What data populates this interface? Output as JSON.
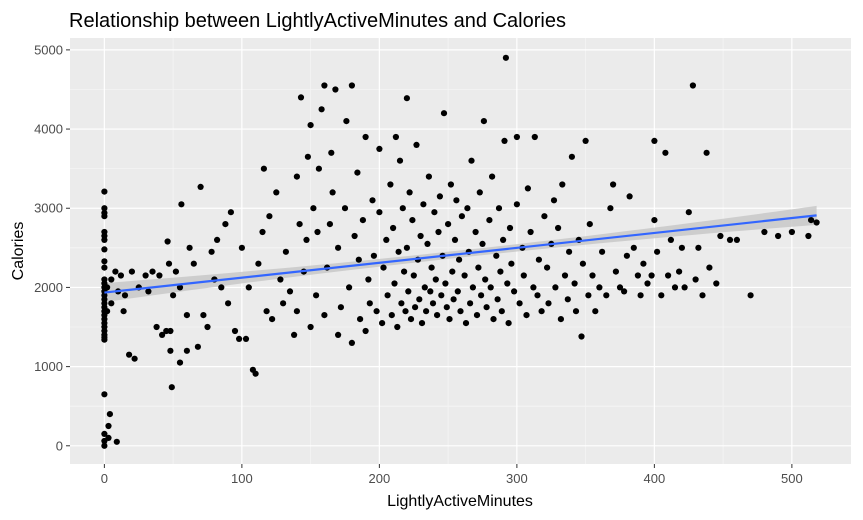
{
  "colors": {
    "panel_bg": "#ebebeb",
    "grid_major": "#ffffff",
    "grid_minor": "#f5f5f5",
    "point": "#000000",
    "trend_line": "#3366ff",
    "confidence_band": "#c8c8c8",
    "tick_label": "#4d4d4d",
    "tick_mark": "#333333"
  },
  "chart_data": {
    "type": "scatter",
    "title": "Relationship between LightlyActiveMinutes and Calories",
    "xlabel": "LightlyActiveMinutes",
    "ylabel": "Calories",
    "xlim": [
      -25,
      543
    ],
    "ylim": [
      -230,
      5150
    ],
    "x_ticks": [
      0,
      100,
      200,
      300,
      400,
      500
    ],
    "y_ticks": [
      0,
      1000,
      2000,
      3000,
      4000,
      5000
    ],
    "x_tick_labels": [
      "0",
      "100",
      "200",
      "300",
      "400",
      "500"
    ],
    "y_tick_labels": [
      "0",
      "1000",
      "2000",
      "3000",
      "4000",
      "5000"
    ],
    "grid": true,
    "legend": false,
    "trend": {
      "method": "linear regression",
      "start": [
        0,
        1935
      ],
      "end": [
        518,
        2910
      ],
      "band_halfwidth_at_mean": 45,
      "band_halfwidth_at_ends": 120
    },
    "points": [
      [
        0,
        3210
      ],
      [
        0,
        3000
      ],
      [
        0,
        2940
      ],
      [
        0,
        2900
      ],
      [
        0,
        2700
      ],
      [
        0,
        2650
      ],
      [
        0,
        2600
      ],
      [
        0,
        2480
      ],
      [
        0,
        2330
      ],
      [
        0,
        2250
      ],
      [
        0,
        2100
      ],
      [
        0,
        2050
      ],
      [
        0,
        2000
      ],
      [
        0,
        1950
      ],
      [
        0,
        1900
      ],
      [
        0,
        1850
      ],
      [
        0,
        1800
      ],
      [
        0,
        1750
      ],
      [
        0,
        1700
      ],
      [
        0,
        1650
      ],
      [
        0,
        1600
      ],
      [
        0,
        1550
      ],
      [
        0,
        1500
      ],
      [
        0,
        1450
      ],
      [
        0,
        1400
      ],
      [
        0,
        1370
      ],
      [
        0,
        1340
      ],
      [
        0,
        650
      ],
      [
        0,
        150
      ],
      [
        0,
        60
      ],
      [
        0,
        0
      ],
      [
        2,
        2000
      ],
      [
        2,
        1700
      ],
      [
        3,
        250
      ],
      [
        3,
        100
      ],
      [
        4,
        400
      ],
      [
        5,
        2100
      ],
      [
        5,
        1800
      ],
      [
        8,
        2200
      ],
      [
        9,
        50
      ],
      [
        10,
        1950
      ],
      [
        12,
        2150
      ],
      [
        14,
        1700
      ],
      [
        15,
        1900
      ],
      [
        18,
        1150
      ],
      [
        20,
        2200
      ],
      [
        22,
        1100
      ],
      [
        25,
        2000
      ],
      [
        30,
        2150
      ],
      [
        32,
        1950
      ],
      [
        35,
        2200
      ],
      [
        38,
        1500
      ],
      [
        40,
        2150
      ],
      [
        42,
        1400
      ],
      [
        45,
        1450
      ],
      [
        46,
        2580
      ],
      [
        47,
        2300
      ],
      [
        48,
        1450
      ],
      [
        48,
        1200
      ],
      [
        49,
        740
      ],
      [
        50,
        1900
      ],
      [
        52,
        2200
      ],
      [
        55,
        1050
      ],
      [
        55,
        2000
      ],
      [
        56,
        3050
      ],
      [
        60,
        1200
      ],
      [
        60,
        1650
      ],
      [
        62,
        2500
      ],
      [
        65,
        2300
      ],
      [
        68,
        1250
      ],
      [
        70,
        3270
      ],
      [
        72,
        1650
      ],
      [
        75,
        1500
      ],
      [
        78,
        2450
      ],
      [
        80,
        2100
      ],
      [
        82,
        2600
      ],
      [
        85,
        2000
      ],
      [
        88,
        2800
      ],
      [
        90,
        1800
      ],
      [
        92,
        2950
      ],
      [
        95,
        1450
      ],
      [
        98,
        1350
      ],
      [
        100,
        2500
      ],
      [
        103,
        1350
      ],
      [
        105,
        2000
      ],
      [
        108,
        960
      ],
      [
        110,
        910
      ],
      [
        112,
        2300
      ],
      [
        115,
        2700
      ],
      [
        116,
        3500
      ],
      [
        118,
        1700
      ],
      [
        120,
        2900
      ],
      [
        122,
        1600
      ],
      [
        125,
        3200
      ],
      [
        128,
        2100
      ],
      [
        130,
        1800
      ],
      [
        132,
        2450
      ],
      [
        135,
        1950
      ],
      [
        138,
        1400
      ],
      [
        140,
        3400
      ],
      [
        140,
        1700
      ],
      [
        142,
        2800
      ],
      [
        143,
        4400
      ],
      [
        145,
        2200
      ],
      [
        147,
        2600
      ],
      [
        148,
        3650
      ],
      [
        150,
        1500
      ],
      [
        150,
        4050
      ],
      [
        152,
        3000
      ],
      [
        154,
        1900
      ],
      [
        155,
        2700
      ],
      [
        156,
        3500
      ],
      [
        158,
        4250
      ],
      [
        160,
        4550
      ],
      [
        160,
        1650
      ],
      [
        162,
        2250
      ],
      [
        164,
        2800
      ],
      [
        165,
        3700
      ],
      [
        166,
        3200
      ],
      [
        168,
        4500
      ],
      [
        170,
        1400
      ],
      [
        170,
        2500
      ],
      [
        172,
        1750
      ],
      [
        175,
        3000
      ],
      [
        176,
        4100
      ],
      [
        178,
        2000
      ],
      [
        180,
        4550
      ],
      [
        180,
        1300
      ],
      [
        182,
        2650
      ],
      [
        184,
        3450
      ],
      [
        185,
        2350
      ],
      [
        186,
        1600
      ],
      [
        188,
        2850
      ],
      [
        190,
        3900
      ],
      [
        190,
        1450
      ],
      [
        192,
        2100
      ],
      [
        193,
        1800
      ],
      [
        195,
        3100
      ],
      [
        196,
        2400
      ],
      [
        198,
        1700
      ],
      [
        200,
        2950
      ],
      [
        200,
        3750
      ],
      [
        202,
        1550
      ],
      [
        203,
        2250
      ],
      [
        205,
        2600
      ],
      [
        206,
        1900
      ],
      [
        208,
        3300
      ],
      [
        209,
        1650
      ],
      [
        210,
        2750
      ],
      [
        211,
        2050
      ],
      [
        212,
        3900
      ],
      [
        213,
        1500
      ],
      [
        214,
        2450
      ],
      [
        215,
        3600
      ],
      [
        216,
        1800
      ],
      [
        217,
        3000
      ],
      [
        218,
        2200
      ],
      [
        219,
        1700
      ],
      [
        220,
        4390
      ],
      [
        220,
        2500
      ],
      [
        221,
        1950
      ],
      [
        222,
        3200
      ],
      [
        223,
        1600
      ],
      [
        224,
        2850
      ],
      [
        225,
        2150
      ],
      [
        226,
        1750
      ],
      [
        227,
        3800
      ],
      [
        228,
        2350
      ],
      [
        229,
        1850
      ],
      [
        230,
        2650
      ],
      [
        231,
        1550
      ],
      [
        232,
        3050
      ],
      [
        233,
        2000
      ],
      [
        234,
        1700
      ],
      [
        235,
        2550
      ],
      [
        236,
        3400
      ],
      [
        237,
        1950
      ],
      [
        238,
        2250
      ],
      [
        239,
        1800
      ],
      [
        240,
        2950
      ],
      [
        241,
        2100
      ],
      [
        242,
        1650
      ],
      [
        243,
        2700
      ],
      [
        244,
        3150
      ],
      [
        245,
        1900
      ],
      [
        246,
        2400
      ],
      [
        247,
        4200
      ],
      [
        248,
        2050
      ],
      [
        249,
        1750
      ],
      [
        250,
        2800
      ],
      [
        251,
        1600
      ],
      [
        252,
        3300
      ],
      [
        253,
        2200
      ],
      [
        254,
        1850
      ],
      [
        255,
        2600
      ],
      [
        256,
        3100
      ],
      [
        257,
        1950
      ],
      [
        258,
        2350
      ],
      [
        259,
        1700
      ],
      [
        260,
        2900
      ],
      [
        262,
        2150
      ],
      [
        263,
        1550
      ],
      [
        264,
        3000
      ],
      [
        265,
        2450
      ],
      [
        266,
        1800
      ],
      [
        267,
        3600
      ],
      [
        268,
        2000
      ],
      [
        270,
        2700
      ],
      [
        271,
        1650
      ],
      [
        272,
        2250
      ],
      [
        273,
        3200
      ],
      [
        274,
        1900
      ],
      [
        275,
        2550
      ],
      [
        276,
        4100
      ],
      [
        277,
        2100
      ],
      [
        278,
        1750
      ],
      [
        280,
        2850
      ],
      [
        281,
        2000
      ],
      [
        282,
        3400
      ],
      [
        283,
        1600
      ],
      [
        285,
        2400
      ],
      [
        286,
        1850
      ],
      [
        287,
        3000
      ],
      [
        288,
        2200
      ],
      [
        289,
        1700
      ],
      [
        290,
        2600
      ],
      [
        291,
        3850
      ],
      [
        292,
        4900
      ],
      [
        293,
        2050
      ],
      [
        294,
        1550
      ],
      [
        295,
        2750
      ],
      [
        296,
        2300
      ],
      [
        298,
        1950
      ],
      [
        300,
        3050
      ],
      [
        300,
        3900
      ],
      [
        302,
        1800
      ],
      [
        304,
        2500
      ],
      [
        305,
        2150
      ],
      [
        307,
        1650
      ],
      [
        308,
        3250
      ],
      [
        310,
        2700
      ],
      [
        312,
        2000
      ],
      [
        313,
        3900
      ],
      [
        315,
        1900
      ],
      [
        316,
        2350
      ],
      [
        318,
        1700
      ],
      [
        320,
        2900
      ],
      [
        322,
        2250
      ],
      [
        323,
        1800
      ],
      [
        325,
        2550
      ],
      [
        327,
        3100
      ],
      [
        328,
        2000
      ],
      [
        330,
        2750
      ],
      [
        332,
        1600
      ],
      [
        333,
        3300
      ],
      [
        335,
        2150
      ],
      [
        337,
        1850
      ],
      [
        338,
        2450
      ],
      [
        340,
        3650
      ],
      [
        342,
        2050
      ],
      [
        343,
        1700
      ],
      [
        345,
        2600
      ],
      [
        347,
        1380
      ],
      [
        348,
        2300
      ],
      [
        350,
        3850
      ],
      [
        352,
        1900
      ],
      [
        353,
        2800
      ],
      [
        355,
        2150
      ],
      [
        357,
        1700
      ],
      [
        360,
        2000
      ],
      [
        362,
        2450
      ],
      [
        365,
        1900
      ],
      [
        368,
        3000
      ],
      [
        370,
        3300
      ],
      [
        372,
        2200
      ],
      [
        375,
        2000
      ],
      [
        378,
        1950
      ],
      [
        380,
        2400
      ],
      [
        382,
        3150
      ],
      [
        385,
        2500
      ],
      [
        388,
        2150
      ],
      [
        390,
        1900
      ],
      [
        392,
        2300
      ],
      [
        395,
        2050
      ],
      [
        398,
        2150
      ],
      [
        400,
        3850
      ],
      [
        400,
        2850
      ],
      [
        402,
        2450
      ],
      [
        405,
        1900
      ],
      [
        408,
        3700
      ],
      [
        410,
        2150
      ],
      [
        412,
        2600
      ],
      [
        415,
        2000
      ],
      [
        418,
        2200
      ],
      [
        420,
        2500
      ],
      [
        422,
        2000
      ],
      [
        425,
        2950
      ],
      [
        428,
        4550
      ],
      [
        430,
        2100
      ],
      [
        432,
        2500
      ],
      [
        435,
        1900
      ],
      [
        438,
        3700
      ],
      [
        440,
        2250
      ],
      [
        445,
        2050
      ],
      [
        448,
        2650
      ],
      [
        455,
        2600
      ],
      [
        460,
        2600
      ],
      [
        470,
        1900
      ],
      [
        480,
        2700
      ],
      [
        490,
        2650
      ],
      [
        500,
        2700
      ],
      [
        512,
        2650
      ],
      [
        514,
        2850
      ],
      [
        518,
        2820
      ]
    ]
  }
}
